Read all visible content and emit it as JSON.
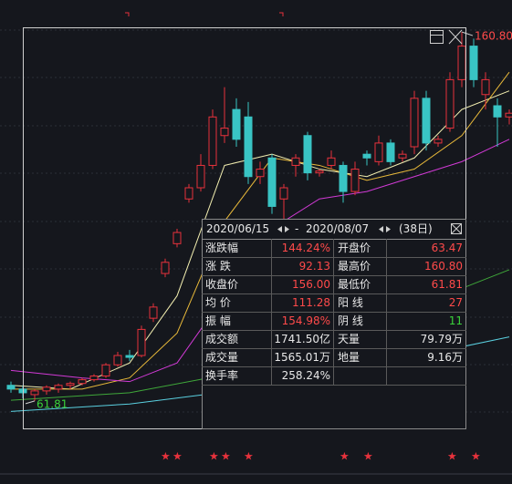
{
  "chart": {
    "type": "candlestick",
    "up_color": "#e8323c",
    "down_color": "#39c4c4",
    "ylim": [
      52,
      168
    ],
    "candles": [
      {
        "o": 66,
        "h": 67,
        "l": 64,
        "c": 65
      },
      {
        "o": 65,
        "h": 66,
        "l": 62.5,
        "c": 64
      },
      {
        "o": 63.5,
        "h": 65,
        "l": 61.81,
        "c": 64.5
      },
      {
        "o": 64.5,
        "h": 66,
        "l": 63.5,
        "c": 65.5
      },
      {
        "o": 65,
        "h": 66.5,
        "l": 64,
        "c": 66
      },
      {
        "o": 66,
        "h": 67,
        "l": 65,
        "c": 66.5
      },
      {
        "o": 66.5,
        "h": 68,
        "l": 66,
        "c": 67.5
      },
      {
        "o": 67.5,
        "h": 69,
        "l": 67,
        "c": 68.5
      },
      {
        "o": 68.5,
        "h": 72,
        "l": 68,
        "c": 71.5
      },
      {
        "o": 71.5,
        "h": 75,
        "l": 71,
        "c": 74
      },
      {
        "o": 74,
        "h": 75.5,
        "l": 72.5,
        "c": 73.5
      },
      {
        "o": 74,
        "h": 82,
        "l": 73.5,
        "c": 81
      },
      {
        "o": 84,
        "h": 88,
        "l": 83,
        "c": 87
      },
      {
        "o": 96,
        "h": 100,
        "l": 95,
        "c": 99
      },
      {
        "o": 104,
        "h": 108,
        "l": 103,
        "c": 107
      },
      {
        "o": 116,
        "h": 120,
        "l": 115,
        "c": 119
      },
      {
        "o": 119,
        "h": 128,
        "l": 118,
        "c": 125
      },
      {
        "o": 125,
        "h": 140,
        "l": 124,
        "c": 138
      },
      {
        "o": 133,
        "h": 146,
        "l": 131,
        "c": 135
      },
      {
        "o": 140,
        "h": 143,
        "l": 130,
        "c": 132
      },
      {
        "o": 138,
        "h": 142,
        "l": 120,
        "c": 122
      },
      {
        "o": 122,
        "h": 126,
        "l": 120,
        "c": 124
      },
      {
        "o": 127,
        "h": 128,
        "l": 112,
        "c": 114
      },
      {
        "o": 116,
        "h": 120,
        "l": 110,
        "c": 119
      },
      {
        "o": 125,
        "h": 128,
        "l": 122,
        "c": 127
      },
      {
        "o": 133,
        "h": 134,
        "l": 121,
        "c": 123
      },
      {
        "o": 123,
        "h": 124,
        "l": 122,
        "c": 123.5
      },
      {
        "o": 125,
        "h": 129,
        "l": 124,
        "c": 127
      },
      {
        "o": 125,
        "h": 126,
        "l": 115,
        "c": 118
      },
      {
        "o": 118,
        "h": 126,
        "l": 117,
        "c": 124
      },
      {
        "o": 128,
        "h": 129,
        "l": 125,
        "c": 127
      },
      {
        "o": 126,
        "h": 133,
        "l": 125,
        "c": 131
      },
      {
        "o": 131,
        "h": 132,
        "l": 125,
        "c": 126
      },
      {
        "o": 127,
        "h": 129,
        "l": 126,
        "c": 128
      },
      {
        "o": 130,
        "h": 145,
        "l": 128,
        "c": 143
      },
      {
        "o": 143,
        "h": 145,
        "l": 129,
        "c": 131
      },
      {
        "o": 131,
        "h": 133,
        "l": 130,
        "c": 132
      },
      {
        "o": 135,
        "h": 150,
        "l": 134,
        "c": 148
      },
      {
        "o": 148,
        "h": 160.8,
        "l": 146,
        "c": 157
      },
      {
        "o": 157,
        "h": 159,
        "l": 146,
        "c": 148
      },
      {
        "o": 144,
        "h": 150,
        "l": 140,
        "c": 148
      },
      {
        "o": 141,
        "h": 143,
        "l": 130,
        "c": 138
      },
      {
        "o": 138,
        "h": 140,
        "l": 136,
        "c": 139
      }
    ],
    "lines": [
      {
        "color": "#f2eeb0",
        "x": [
          0,
          5,
          10,
          14,
          18,
          22,
          26,
          30,
          34,
          38,
          42
        ],
        "values": [
          66,
          65,
          72,
          90,
          125,
          128,
          124,
          122,
          127,
          140,
          145
        ]
      },
      {
        "color": "#e8b93a",
        "x": [
          0,
          6,
          10,
          14,
          18,
          22,
          26,
          30,
          34,
          38,
          42
        ],
        "values": [
          65,
          65,
          68,
          80,
          110,
          127,
          125,
          121,
          124,
          133,
          150
        ]
      },
      {
        "color": "#d23ad6",
        "x": [
          0,
          6,
          10,
          14,
          18,
          22,
          26,
          30,
          34,
          38,
          42
        ],
        "values": [
          70,
          68,
          67,
          72,
          90,
          108,
          116,
          118,
          122,
          126,
          132
        ]
      },
      {
        "color": "#3fa83a",
        "x": [
          0,
          10,
          20,
          30,
          42
        ],
        "values": [
          62,
          64,
          70,
          82,
          97
        ]
      },
      {
        "color": "#5ad0e0",
        "x": [
          0,
          10,
          20,
          30,
          42
        ],
        "values": [
          59,
          61,
          65,
          71,
          79
        ]
      }
    ],
    "high_label": "160.80",
    "low_label": "61.81"
  },
  "popup": {
    "start": "2020/06/15",
    "end": "2020/08/07",
    "days": "(38日)",
    "rows": [
      [
        {
          "label": "涨跌幅",
          "value": "144.24%",
          "color": "#ff4a4a"
        },
        {
          "label": "开盘价",
          "value": "63.47",
          "color": "#ff4a4a"
        }
      ],
      [
        {
          "label": "涨 跌",
          "value": "92.13",
          "color": "#ff4a4a"
        },
        {
          "label": "最高价",
          "value": "160.80",
          "color": "#ff4a4a"
        }
      ],
      [
        {
          "label": "收盘价",
          "value": "156.00",
          "color": "#ff4a4a"
        },
        {
          "label": "最低价",
          "value": "61.81",
          "color": "#ff4a4a"
        }
      ],
      [
        {
          "label": "均 价",
          "value": "111.28",
          "color": "#ff4a4a"
        },
        {
          "label": "阳 线",
          "value": "27",
          "color": "#ff4a4a"
        }
      ],
      [
        {
          "label": "振 幅",
          "value": "154.98%",
          "color": "#ff4a4a"
        },
        {
          "label": "阴 线",
          "value": "11",
          "color": "#3ad23a"
        }
      ],
      [
        {
          "label": "成交额",
          "value": "1741.50亿",
          "color": "#e8e8e8"
        },
        {
          "label": "天量",
          "value": "79.79万",
          "color": "#e8e8e8"
        }
      ],
      [
        {
          "label": "成交量",
          "value": "1565.01万",
          "color": "#e8e8e8"
        },
        {
          "label": "地量",
          "value": "9.16万",
          "color": "#e8e8e8"
        }
      ],
      [
        {
          "label": "换手率",
          "value": "258.24%",
          "color": "#e8e8e8"
        }
      ]
    ]
  }
}
